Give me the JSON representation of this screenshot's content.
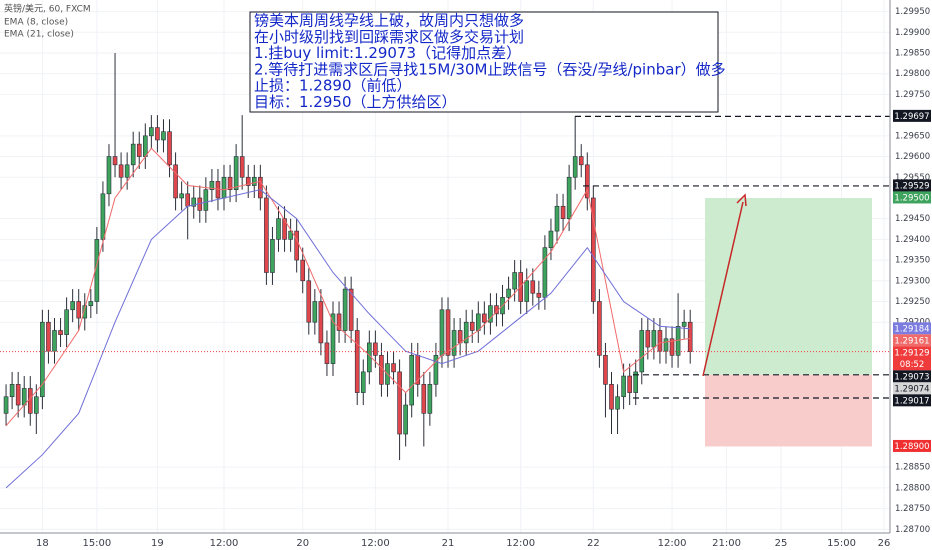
{
  "chart_data": {
    "type": "candlestick",
    "title": "英镑/美元, 60, FXCM",
    "up_color": "#3da35d",
    "down_color": "#e0474c",
    "xlim": [
      -1,
      146
    ],
    "xticks": [
      {
        "value": 6,
        "label": "18"
      },
      {
        "value": 15,
        "label": "15:00"
      },
      {
        "value": 25,
        "label": "19"
      },
      {
        "value": 36,
        "label": "12:00"
      },
      {
        "value": 49,
        "label": "20"
      },
      {
        "value": 61,
        "label": "12:00"
      },
      {
        "value": 73,
        "label": "21"
      },
      {
        "value": 85,
        "label": "12:00"
      },
      {
        "value": 97,
        "label": "22"
      },
      {
        "value": 110,
        "label": "12:00"
      },
      {
        "value": 119,
        "label": "21:00"
      },
      {
        "value": 128,
        "label": "25"
      },
      {
        "value": 138,
        "label": "15:00"
      },
      {
        "value": 145,
        "label": "26"
      }
    ],
    "ylim": [
      1.28691,
      1.29978
    ],
    "yticks": [
      {
        "value": 1.2995,
        "label": "1.29950"
      },
      {
        "value": 1.299,
        "label": "1.29900"
      },
      {
        "value": 1.2985,
        "label": "1.29850"
      },
      {
        "value": 1.298,
        "label": "1.29800"
      },
      {
        "value": 1.2975,
        "label": "1.29750"
      },
      {
        "value": 1.2965,
        "label": "1.29650"
      },
      {
        "value": 1.296,
        "label": "1.29600"
      },
      {
        "value": 1.2955,
        "label": "1.29550"
      },
      {
        "value": 1.2945,
        "label": "1.29450"
      },
      {
        "value": 1.294,
        "label": "1.29400"
      },
      {
        "value": 1.2935,
        "label": "1.29350"
      },
      {
        "value": 1.293,
        "label": "1.29300"
      },
      {
        "value": 1.2925,
        "label": "1.29250"
      },
      {
        "value": 1.292,
        "label": "1.29200"
      },
      {
        "value": 1.2885,
        "label": "1.28850"
      },
      {
        "value": 1.288,
        "label": "1.28800"
      },
      {
        "value": 1.2875,
        "label": "1.28750"
      },
      {
        "value": 1.287,
        "label": "1.28700"
      }
    ],
    "grid": true,
    "candles": {
      "open": [
        1.2898,
        1.2902,
        1.2905,
        1.29,
        1.2904,
        1.2898,
        1.2902,
        1.292,
        1.2913,
        1.2918,
        1.2917,
        1.2923,
        1.2925,
        1.2921,
        1.2924,
        1.2925,
        1.294,
        1.2951,
        1.296,
        1.2958,
        1.2955,
        1.2958,
        1.2963,
        1.296,
        1.2965,
        1.2967,
        1.2964,
        1.2966,
        1.2958,
        1.295,
        1.2951,
        1.2948,
        1.295,
        1.2947,
        1.2952,
        1.2954,
        1.295,
        1.2955,
        1.2952,
        1.296,
        1.2955,
        1.2953,
        1.2955,
        1.295,
        1.2932,
        1.294,
        1.2945,
        1.294,
        1.2942,
        1.2935,
        1.293,
        1.292,
        1.2925,
        1.2915,
        1.291,
        1.2922,
        1.2918,
        1.2928,
        1.2918,
        1.2903,
        1.2908,
        1.2915,
        1.2912,
        1.2905,
        1.291,
        1.2908,
        1.2893,
        1.29,
        1.2912,
        1.2905,
        1.2898,
        1.2905,
        1.2912,
        1.2923,
        1.2912,
        1.2918,
        1.2915,
        1.292,
        1.2918,
        1.2922,
        1.292,
        1.2924,
        1.2922,
        1.2926,
        1.2928,
        1.2932,
        1.2925,
        1.293,
        1.2927,
        1.2926,
        1.2938,
        1.2942,
        1.2948,
        1.2945,
        1.2955,
        1.296,
        1.2958,
        1.295,
        1.2925,
        1.2912,
        1.2905,
        1.2899,
        1.2902,
        1.2907,
        1.2903,
        1.2908,
        1.2918,
        1.2914,
        1.2918,
        1.2913,
        1.2916,
        1.2912,
        1.2919,
        1.292
      ],
      "high": [
        1.2905,
        1.2908,
        1.2908,
        1.2907,
        1.2907,
        1.2905,
        1.2923,
        1.2923,
        1.2921,
        1.2921,
        1.2926,
        1.2928,
        1.2928,
        1.2927,
        1.2928,
        1.2943,
        1.2954,
        1.2963,
        1.2985,
        1.2961,
        1.2961,
        1.2966,
        1.2966,
        1.2968,
        1.297,
        1.297,
        1.2969,
        1.2969,
        1.2961,
        1.2954,
        1.2954,
        1.2953,
        1.2953,
        1.2955,
        1.2957,
        1.2957,
        1.2958,
        1.2958,
        1.2963,
        1.297,
        1.2958,
        1.2958,
        1.2958,
        1.2953,
        1.2943,
        1.2948,
        1.2948,
        1.2945,
        1.2945,
        1.2938,
        1.2933,
        1.2928,
        1.2928,
        1.2918,
        1.2925,
        1.2925,
        1.2931,
        1.2931,
        1.2921,
        1.2911,
        1.2918,
        1.2918,
        1.2915,
        1.2913,
        1.2913,
        1.2911,
        1.2903,
        1.2915,
        1.2915,
        1.2908,
        1.2908,
        1.2915,
        1.2926,
        1.2926,
        1.2921,
        1.2921,
        1.2923,
        1.2923,
        1.2925,
        1.2925,
        1.2927,
        1.2927,
        1.2929,
        1.2931,
        1.2935,
        1.2935,
        1.2933,
        1.2933,
        1.293,
        1.2941,
        1.2945,
        1.2951,
        1.2951,
        1.2958,
        1.29697,
        1.2963,
        1.2961,
        1.2953,
        1.2928,
        1.2915,
        1.2908,
        1.2905,
        1.291,
        1.291,
        1.2911,
        1.2921,
        1.2921,
        1.2921,
        1.2921,
        1.2919,
        1.2919,
        1.2927,
        1.2923,
        1.2923
      ],
      "low": [
        1.2895,
        1.2899,
        1.2897,
        1.2897,
        1.2895,
        1.2893,
        1.2899,
        1.291,
        1.291,
        1.2914,
        1.2914,
        1.292,
        1.2918,
        1.2918,
        1.2921,
        1.2922,
        1.2937,
        1.2948,
        1.2955,
        1.2952,
        1.2952,
        1.2955,
        1.2957,
        1.2957,
        1.2962,
        1.2961,
        1.2961,
        1.2955,
        1.2947,
        1.2947,
        1.294,
        1.2945,
        1.2944,
        1.2944,
        1.2949,
        1.2947,
        1.2947,
        1.2949,
        1.2949,
        1.2952,
        1.295,
        1.295,
        1.2947,
        1.2929,
        1.2929,
        1.2937,
        1.2937,
        1.2937,
        1.2932,
        1.2927,
        1.2917,
        1.2917,
        1.2912,
        1.2907,
        1.2907,
        1.2915,
        1.2915,
        1.2915,
        1.29,
        1.29,
        1.2905,
        1.2909,
        1.2902,
        1.2902,
        1.2905,
        1.28867,
        1.289,
        1.2897,
        1.2902,
        1.289,
        1.2895,
        1.2902,
        1.2909,
        1.2909,
        1.2909,
        1.2912,
        1.2912,
        1.2915,
        1.2915,
        1.2917,
        1.2917,
        1.2919,
        1.2919,
        1.2923,
        1.2925,
        1.2922,
        1.2922,
        1.2924,
        1.2923,
        1.2923,
        1.2935,
        1.2939,
        1.2942,
        1.2942,
        1.2952,
        1.2955,
        1.2947,
        1.2922,
        1.2909,
        1.2897,
        1.2893,
        1.2893,
        1.2899,
        1.29,
        1.29,
        1.2905,
        1.2911,
        1.2911,
        1.291,
        1.291,
        1.2909,
        1.2909,
        1.2916,
        1.291
      ],
      "close": [
        1.2902,
        1.2905,
        1.29,
        1.2904,
        1.2898,
        1.2902,
        1.292,
        1.2913,
        1.2918,
        1.2917,
        1.2923,
        1.2925,
        1.2921,
        1.2924,
        1.2925,
        1.294,
        1.2951,
        1.296,
        1.2958,
        1.2955,
        1.2958,
        1.2963,
        1.296,
        1.2965,
        1.2967,
        1.2964,
        1.2966,
        1.2958,
        1.295,
        1.2951,
        1.2948,
        1.295,
        1.2947,
        1.2952,
        1.2954,
        1.295,
        1.2955,
        1.2952,
        1.296,
        1.2955,
        1.2953,
        1.2955,
        1.295,
        1.2932,
        1.294,
        1.2945,
        1.294,
        1.2942,
        1.2935,
        1.293,
        1.292,
        1.2925,
        1.2915,
        1.291,
        1.2922,
        1.2918,
        1.2928,
        1.2918,
        1.2903,
        1.2908,
        1.2915,
        1.2912,
        1.2905,
        1.291,
        1.2908,
        1.2893,
        1.29,
        1.2912,
        1.2905,
        1.2898,
        1.2905,
        1.2912,
        1.2923,
        1.2912,
        1.2918,
        1.2915,
        1.292,
        1.2918,
        1.2922,
        1.292,
        1.2924,
        1.2922,
        1.2926,
        1.2928,
        1.2932,
        1.2925,
        1.293,
        1.2927,
        1.2926,
        1.2938,
        1.2942,
        1.2948,
        1.2945,
        1.2955,
        1.296,
        1.2958,
        1.295,
        1.2925,
        1.2912,
        1.2905,
        1.2899,
        1.2902,
        1.2907,
        1.2903,
        1.2908,
        1.2918,
        1.2914,
        1.2918,
        1.2913,
        1.2916,
        1.2912,
        1.2919,
        1.292,
        1.29129
      ]
    },
    "series": [
      {
        "name": "EMA (8, close)",
        "color": "#f06a6a",
        "x": [
          0,
          6,
          12,
          18,
          24,
          30,
          36,
          42,
          48,
          54,
          60,
          66,
          72,
          78,
          84,
          90,
          96,
          102,
          108,
          113
        ],
        "values": [
          1.2895,
          1.2905,
          1.2918,
          1.295,
          1.2962,
          1.2953,
          1.2952,
          1.2954,
          1.294,
          1.292,
          1.2912,
          1.2903,
          1.2912,
          1.2918,
          1.2927,
          1.2937,
          1.2952,
          1.2908,
          1.2915,
          1.29161
        ]
      },
      {
        "name": "EMA (21, close)",
        "color": "#6f6fd8",
        "x": [
          0,
          6,
          12,
          18,
          24,
          30,
          36,
          42,
          48,
          54,
          60,
          66,
          72,
          78,
          84,
          90,
          96,
          102,
          108,
          113
        ],
        "values": [
          1.288,
          1.2888,
          1.2898,
          1.292,
          1.294,
          1.2948,
          1.295,
          1.2952,
          1.2945,
          1.2932,
          1.2922,
          1.2913,
          1.291,
          1.2913,
          1.292,
          1.2927,
          1.2938,
          1.2925,
          1.2919,
          1.29184
        ]
      }
    ],
    "annotation": [
      "镑美本周周线孕线上破，故周内只想做多",
      "在小时级别找到回踩需求区做多交易计划",
      "1.挂buy limit:1.29073（记得加点差）",
      "2.等待打进需求区后寻找15M/30M止跌信号（吞没/孕线/pinbar）做多",
      "止损：1.2890（前低）",
      "目标：1.2950（上方供给区）"
    ],
    "trade": {
      "entry": 1.29073,
      "target": 1.295,
      "stop": 1.289,
      "profit_color": "#cdeccf",
      "loss_color": "#f9cccc"
    },
    "price_tags": [
      {
        "value": 1.29697,
        "label": "1.29697",
        "color": "#131722"
      },
      {
        "value": 1.29529,
        "label": "1.29529",
        "color": "#131722"
      },
      {
        "value": 1.295,
        "label": "1.29500",
        "color": "#3da35d"
      },
      {
        "value": 1.29184,
        "label": "1.29184",
        "color": "#7b7be0"
      },
      {
        "value": 1.29161,
        "label": "1.29161",
        "color": "#f06a6a"
      },
      {
        "value": 1.29129,
        "label": "1.29129",
        "color": "#ef3b3b",
        "countdown": "08:52"
      },
      {
        "value": 1.29073,
        "label": "1.29073",
        "color": "#131722"
      },
      {
        "value": 1.29074,
        "label": "1.29074",
        "color": "#d6d6d6",
        "text_color": "#131722"
      },
      {
        "value": 1.29017,
        "label": "1.29017",
        "color": "#131722"
      },
      {
        "value": 1.289,
        "label": "1.28900",
        "color": "#f03030"
      }
    ]
  }
}
